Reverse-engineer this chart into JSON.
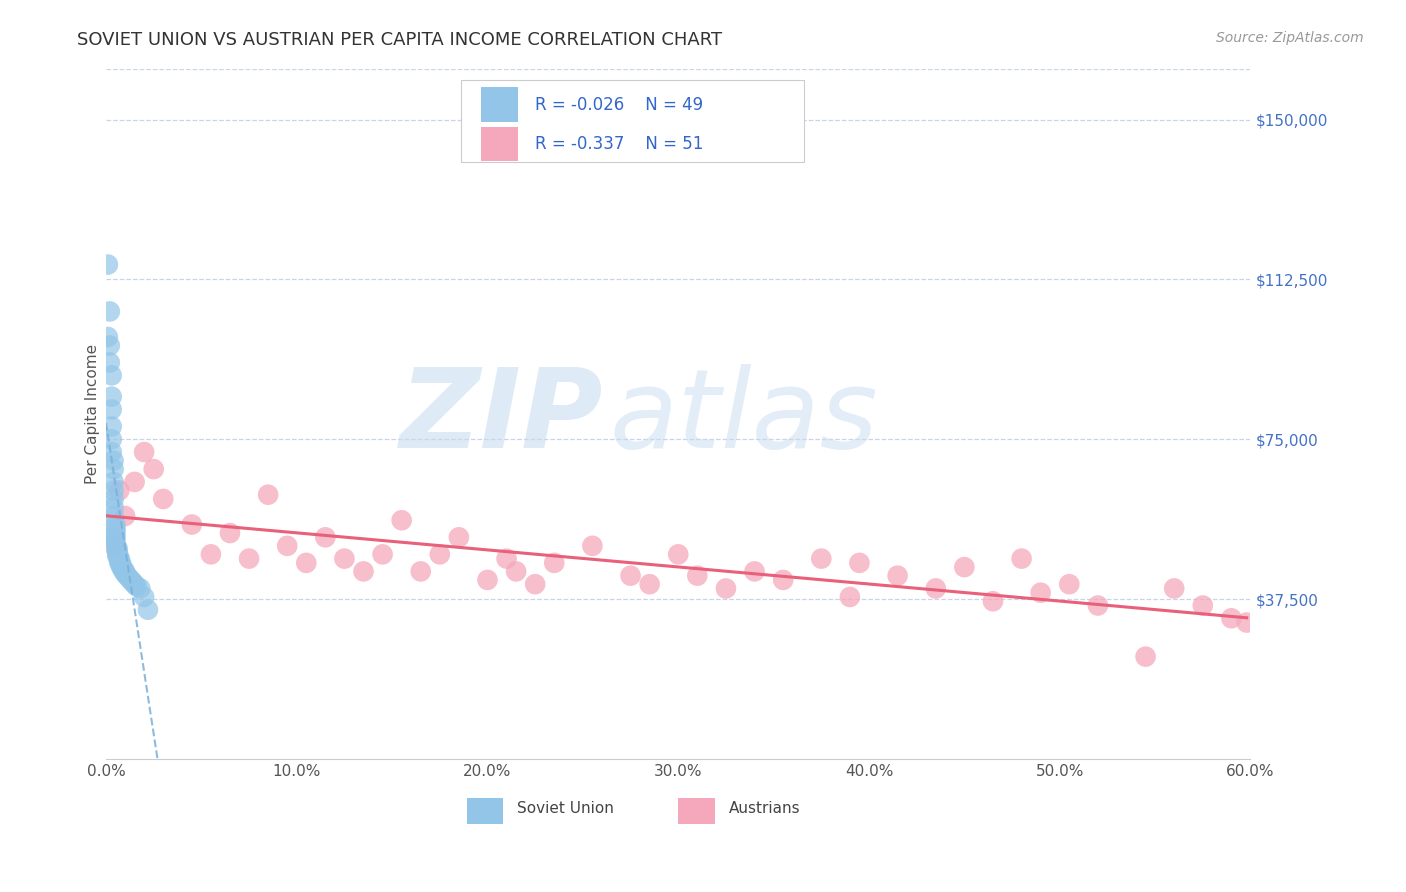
{
  "title": "SOVIET UNION VS AUSTRIAN PER CAPITA INCOME CORRELATION CHART",
  "source": "Source: ZipAtlas.com",
  "ylabel": "Per Capita Income",
  "xlim": [
    0,
    0.6
  ],
  "ylim": [
    0,
    162000
  ],
  "xtick_labels": [
    "0.0%",
    "10.0%",
    "20.0%",
    "30.0%",
    "40.0%",
    "50.0%",
    "60.0%"
  ],
  "xtick_vals": [
    0,
    0.1,
    0.2,
    0.3,
    0.4,
    0.5,
    0.6
  ],
  "ytick_vals": [
    0,
    37500,
    75000,
    112500,
    150000
  ],
  "ytick_labels": [
    "",
    "$37,500",
    "$75,000",
    "$112,500",
    "$150,000"
  ],
  "legend_blue_r": "R = -0.026",
  "legend_blue_n": "N = 49",
  "legend_pink_r": "R = -0.337",
  "legend_pink_n": "N = 51",
  "soviet_color": "#92C5E8",
  "austrian_color": "#F5A8BC",
  "soviet_line_color": "#7AB0D8",
  "austrian_line_color": "#E8607A",
  "background_color": "#FFFFFF",
  "grid_color": "#C8D4E8",
  "soviet_x": [
    0.001,
    0.001,
    0.002,
    0.002,
    0.002,
    0.003,
    0.003,
    0.003,
    0.003,
    0.003,
    0.003,
    0.004,
    0.004,
    0.004,
    0.004,
    0.004,
    0.004,
    0.004,
    0.005,
    0.005,
    0.005,
    0.005,
    0.005,
    0.005,
    0.006,
    0.006,
    0.006,
    0.006,
    0.006,
    0.007,
    0.007,
    0.007,
    0.007,
    0.008,
    0.008,
    0.008,
    0.009,
    0.009,
    0.01,
    0.01,
    0.011,
    0.012,
    0.013,
    0.014,
    0.015,
    0.016,
    0.018,
    0.02,
    0.022
  ],
  "soviet_y": [
    116000,
    99000,
    105000,
    97000,
    93000,
    90000,
    85000,
    82000,
    78000,
    75000,
    72000,
    70000,
    68000,
    65000,
    63000,
    61000,
    59000,
    57000,
    55000,
    54000,
    53000,
    52000,
    51000,
    50000,
    49500,
    49000,
    48500,
    48000,
    47500,
    47200,
    47000,
    46500,
    46000,
    45800,
    45500,
    45000,
    44500,
    44200,
    44000,
    43500,
    43000,
    42500,
    42000,
    41500,
    41000,
    40500,
    40000,
    38000,
    35000
  ],
  "austrian_x": [
    0.004,
    0.007,
    0.01,
    0.015,
    0.02,
    0.025,
    0.03,
    0.045,
    0.055,
    0.065,
    0.075,
    0.085,
    0.095,
    0.105,
    0.115,
    0.125,
    0.135,
    0.145,
    0.155,
    0.165,
    0.175,
    0.185,
    0.2,
    0.21,
    0.215,
    0.225,
    0.235,
    0.255,
    0.275,
    0.285,
    0.3,
    0.31,
    0.325,
    0.34,
    0.355,
    0.375,
    0.39,
    0.395,
    0.415,
    0.435,
    0.45,
    0.465,
    0.48,
    0.49,
    0.505,
    0.52,
    0.545,
    0.56,
    0.575,
    0.59,
    0.598
  ],
  "austrian_y": [
    50000,
    63000,
    57000,
    65000,
    72000,
    68000,
    61000,
    55000,
    48000,
    53000,
    47000,
    62000,
    50000,
    46000,
    52000,
    47000,
    44000,
    48000,
    56000,
    44000,
    48000,
    52000,
    42000,
    47000,
    44000,
    41000,
    46000,
    50000,
    43000,
    41000,
    48000,
    43000,
    40000,
    44000,
    42000,
    47000,
    38000,
    46000,
    43000,
    40000,
    45000,
    37000,
    47000,
    39000,
    41000,
    36000,
    24000,
    40000,
    36000,
    33000,
    32000
  ]
}
